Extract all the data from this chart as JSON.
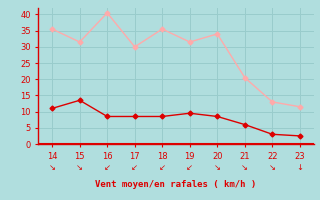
{
  "x": [
    14,
    15,
    16,
    17,
    18,
    19,
    20,
    21,
    22,
    23
  ],
  "wind_mean": [
    11,
    13.5,
    8.5,
    8.5,
    8.5,
    9.5,
    8.5,
    6,
    3,
    2.5
  ],
  "wind_gust": [
    35.5,
    31.5,
    40.5,
    30,
    35.5,
    31.5,
    34,
    20.5,
    13,
    11.5
  ],
  "mean_color": "#dd0000",
  "gust_color": "#ffaaaa",
  "bg_color": "#b0dede",
  "grid_color": "#99cccc",
  "axis_color": "#dd0000",
  "xlabel": "Vent moyen/en rafales ( km/h )",
  "xlabel_color": "#dd0000",
  "xlim": [
    13.5,
    23.5
  ],
  "ylim": [
    0,
    42
  ],
  "yticks": [
    0,
    5,
    10,
    15,
    20,
    25,
    30,
    35,
    40
  ],
  "xticks": [
    14,
    15,
    16,
    17,
    18,
    19,
    20,
    21,
    22,
    23
  ],
  "tick_color": "#dd0000",
  "line_width": 1.0,
  "marker": "D",
  "marker_size": 2.5,
  "arrow_chars": [
    "↘",
    "↘",
    "↙",
    "↙",
    "↙",
    "↙",
    "↘",
    "↘",
    "↘",
    "↓"
  ]
}
